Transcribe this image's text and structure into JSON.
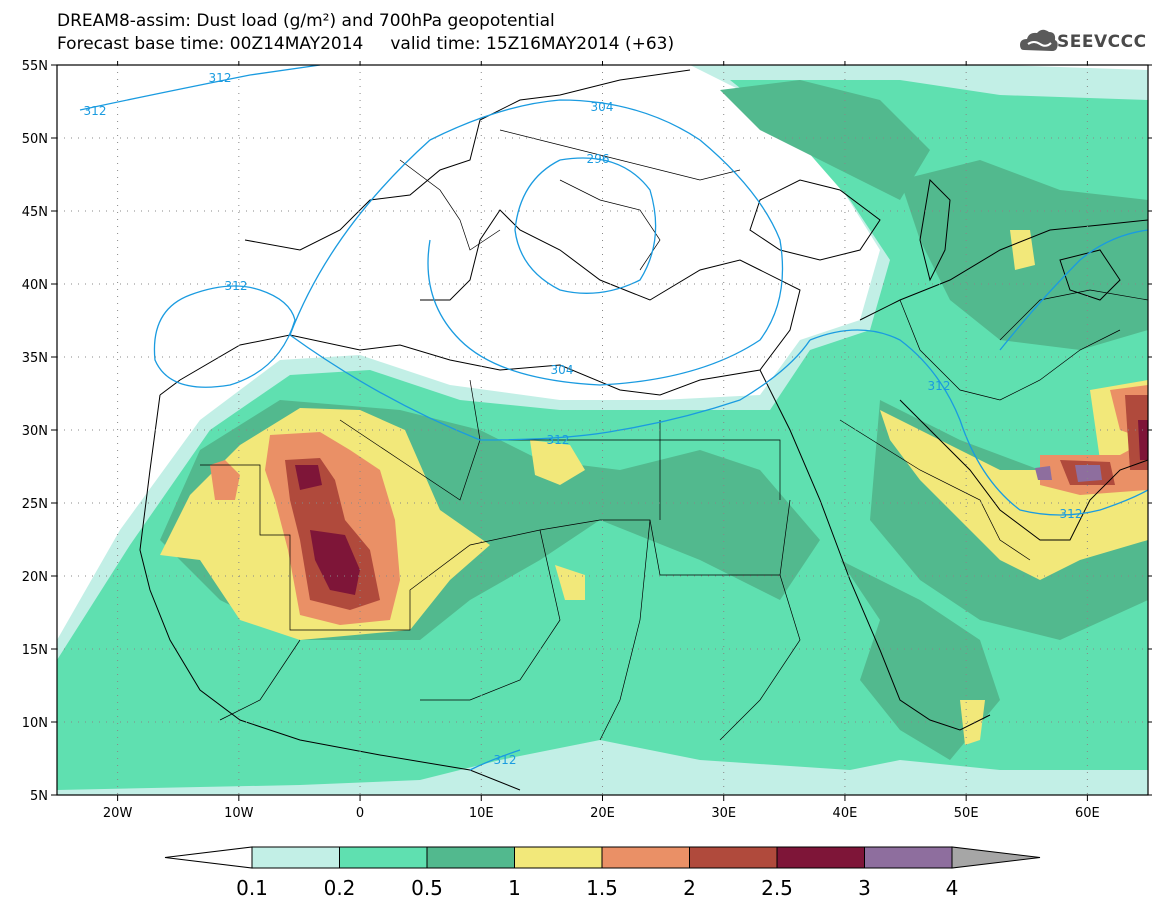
{
  "title": {
    "line1": "DREAM8-assim: Dust load (g/m²) and 700hPa geopotential",
    "line2": "Forecast base time: 00Z14MAY2014     valid time: 15Z16MAY2014 (+63)"
  },
  "logo": {
    "text": "SEEVCCC",
    "icon": "cloud-logo-icon"
  },
  "axes": {
    "lon_labels": [
      "20W",
      "10W",
      "0",
      "10E",
      "20E",
      "30E",
      "40E",
      "50E",
      "60E"
    ],
    "lon_values": [
      -20,
      -10,
      0,
      10,
      20,
      30,
      40,
      50,
      60
    ],
    "lat_labels": [
      "55N",
      "50N",
      "45N",
      "40N",
      "35N",
      "30N",
      "25N",
      "20N",
      "15N",
      "10N",
      "5N"
    ],
    "lat_values": [
      55,
      50,
      45,
      40,
      35,
      30,
      25,
      20,
      15,
      10,
      5
    ],
    "lon_range": [
      -25,
      65
    ],
    "lat_range": [
      5,
      55
    ]
  },
  "contours": {
    "labels": [
      "312",
      "312",
      "304",
      "296",
      "312",
      "304",
      "312",
      "312",
      "312",
      "312"
    ]
  },
  "colorbar": {
    "labels": [
      "0.1",
      "0.2",
      "0.5",
      "1",
      "1.5",
      "2",
      "2.5",
      "3",
      "4"
    ],
    "colors": [
      "#ffffff",
      "#c2efe6",
      "#5fe0b0",
      "#52b98e",
      "#f2e87a",
      "#ea9066",
      "#b04a3c",
      "#7e1538",
      "#8e6e9e",
      "#a6a6a6"
    ]
  }
}
